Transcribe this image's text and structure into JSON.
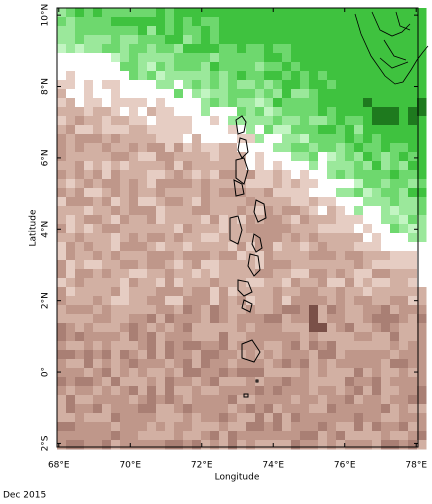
{
  "map": {
    "xlabel": "Longitude",
    "ylabel": "Latitude",
    "xlim": [
      67.95,
      78.05
    ],
    "ylim": [
      -2.1,
      10.2
    ],
    "xticks": [
      {
        "value": 68,
        "label": "68°E"
      },
      {
        "value": 70,
        "label": "70°E"
      },
      {
        "value": 72,
        "label": "72°E"
      },
      {
        "value": 74,
        "label": "74°E"
      },
      {
        "value": 76,
        "label": "76°E"
      },
      {
        "value": 78,
        "label": "78°E"
      }
    ],
    "yticks": [
      {
        "value": -2,
        "label": "2°S"
      },
      {
        "value": 0,
        "label": "0°"
      },
      {
        "value": 2,
        "label": "2°N"
      },
      {
        "value": 4,
        "label": "4°N"
      },
      {
        "value": 6,
        "label": "6°N"
      },
      {
        "value": 8,
        "label": "8°N"
      },
      {
        "value": 10,
        "label": "10°N"
      }
    ]
  },
  "footer": "Dec 2015"
}
